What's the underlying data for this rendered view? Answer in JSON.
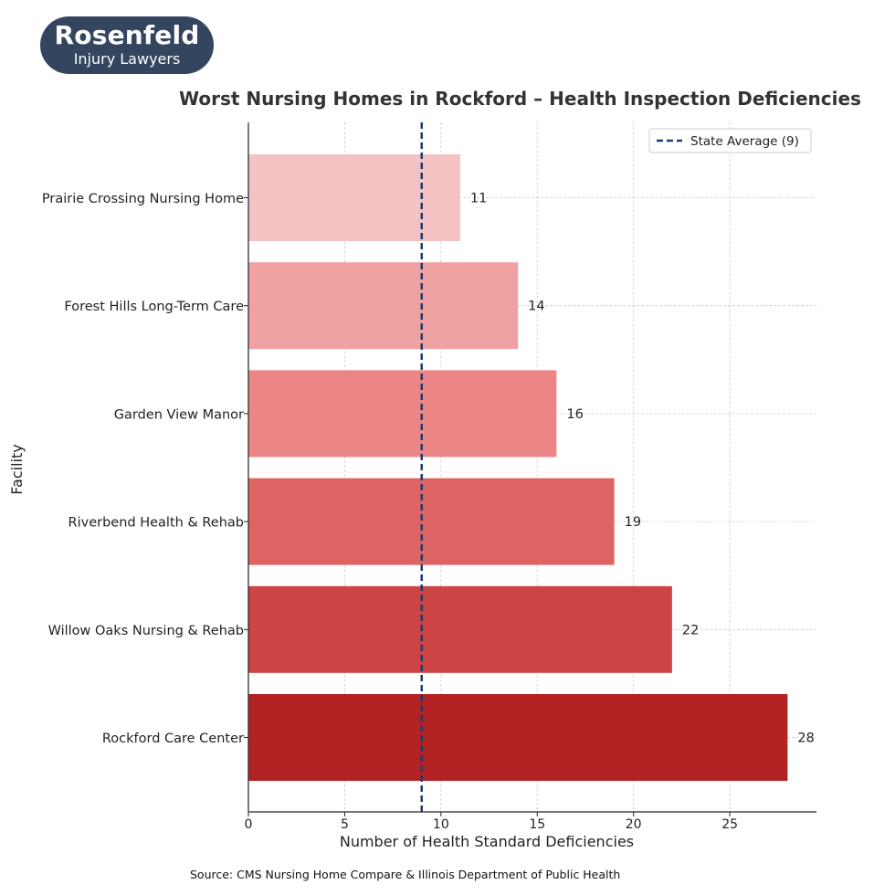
{
  "logo": {
    "name": "Rosenfeld",
    "tagline": "Injury Lawyers"
  },
  "source": "Source: CMS Nursing Home Compare & Illinois Department of Public Health",
  "chart_data": {
    "type": "bar",
    "orientation": "horizontal",
    "title": "Worst Nursing Homes in Rockford – Health Inspection Deficiencies",
    "xlabel": "Number of Health Standard Deficiencies",
    "ylabel": "Facility",
    "xlim": [
      0,
      29.5
    ],
    "xticks": [
      0,
      5,
      10,
      15,
      20,
      25
    ],
    "grid": true,
    "legend_position": "top-right",
    "categories": [
      "Prairie Crossing Nursing Home",
      "Forest Hills Long-Term Care",
      "Garden View Manor",
      "Riverbend Health & Rehab",
      "Willow Oaks Nursing & Rehab",
      "Rockford Care Center"
    ],
    "values": [
      11,
      14,
      16,
      19,
      22,
      28
    ],
    "colors": [
      "#f4c2c2",
      "#f0a1a1",
      "#ec8686",
      "#de6464",
      "#cc4444",
      "#b22222"
    ],
    "reference_line": {
      "label": "State Average (9)",
      "value": 9,
      "color": "#1e3a6e"
    }
  }
}
